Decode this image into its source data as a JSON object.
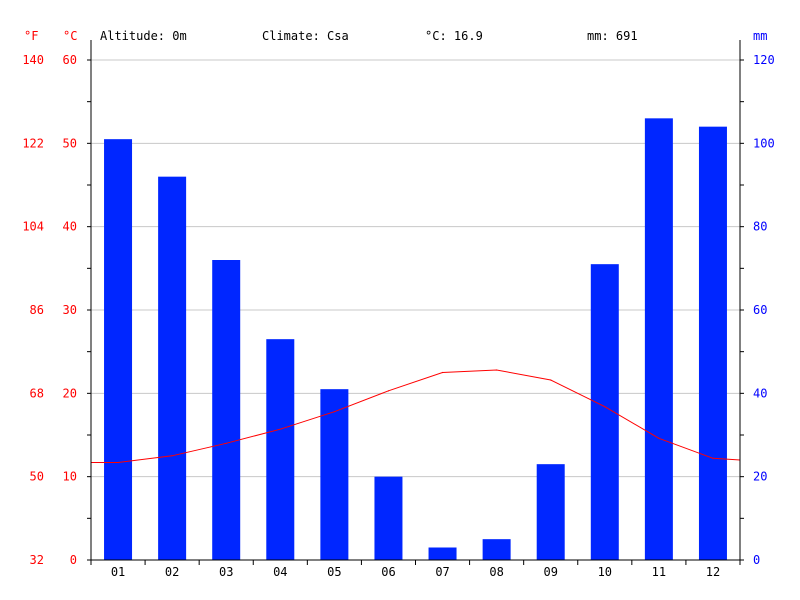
{
  "header": {
    "altitude": "Altitude: 0m",
    "climate": "Climate: Csa",
    "temp_avg": "°C: 16.9",
    "precip_total": "mm: 691"
  },
  "axes": {
    "unit_f": "°F",
    "unit_c": "°C",
    "unit_mm": "mm"
  },
  "colors": {
    "precip": "#0026ff",
    "temp": "#ff0000",
    "grid": "#c8c8c8",
    "left_labels": "#ff0000",
    "right_labels": "#0000ff"
  },
  "chart_data": {
    "type": "bar",
    "title": "",
    "categories": [
      "01",
      "02",
      "03",
      "04",
      "05",
      "06",
      "07",
      "08",
      "09",
      "10",
      "11",
      "12"
    ],
    "series": [
      {
        "values": [
          101,
          92,
          72,
          53,
          41,
          20,
          3,
          5,
          23,
          71,
          106,
          104
        ]
      },
      {
        "type": "line",
        "values": [
          11.7,
          12.5,
          14.0,
          15.7,
          17.8,
          20.3,
          22.5,
          22.8,
          21.6,
          18.4,
          14.6,
          12.2
        ]
      }
    ],
    "temp_c_ticks": [
      0,
      10,
      20,
      30,
      40,
      50,
      60
    ],
    "temp_f_ticks": [
      32,
      50,
      68,
      86,
      104,
      122,
      140
    ],
    "precip_ticks": [
      0,
      20,
      40,
      60,
      80,
      100,
      120
    ],
    "temp_ylim": [
      0,
      60
    ],
    "precip_ylim": [
      0,
      120
    ],
    "grid": true
  }
}
